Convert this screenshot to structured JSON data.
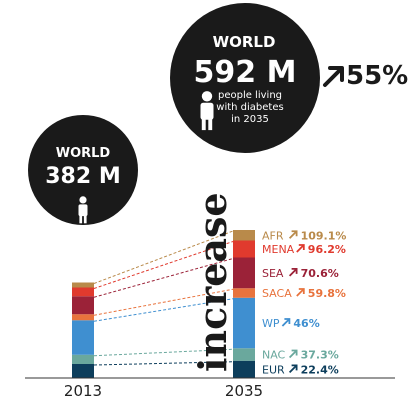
{
  "chart_data": {
    "type": "bar",
    "stacked": true,
    "categories": [
      "2013",
      "2035"
    ],
    "series": [
      {
        "name": "EUR",
        "values": [
          56,
          69
        ],
        "growth": "22.4%",
        "color": "#0d3e5c"
      },
      {
        "name": "NAC",
        "values": [
          37,
          50
        ],
        "growth": "37.3%",
        "color": "#6aa89d"
      },
      {
        "name": "WP",
        "values": [
          138,
          202
        ],
        "growth": "46%",
        "color": "#3f8fd0"
      },
      {
        "name": "SACA",
        "values": [
          24,
          38
        ],
        "growth": "59.8%",
        "color": "#e8733d"
      },
      {
        "name": "SEA",
        "values": [
          72,
          123
        ],
        "growth": "70.6%",
        "color": "#9b2238"
      },
      {
        "name": "MENA",
        "values": [
          35,
          68
        ],
        "growth": "96.2%",
        "color": "#e03a2e"
      },
      {
        "name": "AFR",
        "values": [
          20,
          42
        ],
        "growth": "109.1%",
        "color": "#b98a4a"
      }
    ],
    "totals": [
      {
        "label": "WORLD",
        "value": "382 M"
      },
      {
        "label": "WORLD",
        "value": "592 M",
        "note": [
          "people living",
          "with diabetes",
          "in 2035"
        ]
      }
    ],
    "increase_word": "increase",
    "total_increase": "55%"
  }
}
